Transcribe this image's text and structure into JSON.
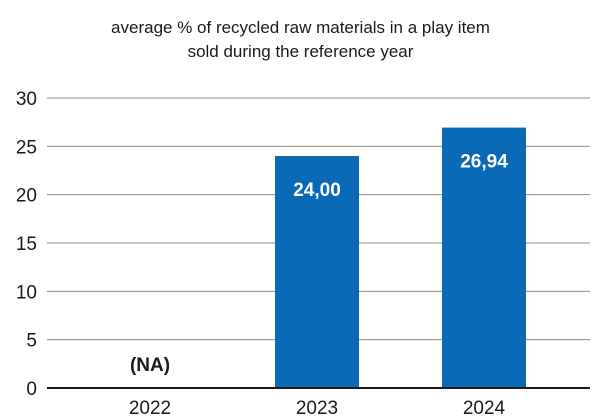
{
  "chart_data": {
    "type": "bar",
    "title_lines": [
      "average % of recycled raw materials in a play item",
      "sold during the reference year"
    ],
    "categories": [
      "2022",
      "2023",
      "2024"
    ],
    "values": [
      null,
      24.0,
      26.94
    ],
    "data_labels": [
      "(NA)",
      "24,00",
      "26,94"
    ],
    "ylim": [
      0,
      30
    ],
    "yticks": [
      "0",
      "5",
      "10",
      "15",
      "20",
      "25",
      "30"
    ],
    "grid": true,
    "bar_color": "#0a6ab5",
    "grid_color": "#8c8c8c",
    "label_inside_color": "#ffffff",
    "label_outside_color": "#1a1a1a"
  }
}
